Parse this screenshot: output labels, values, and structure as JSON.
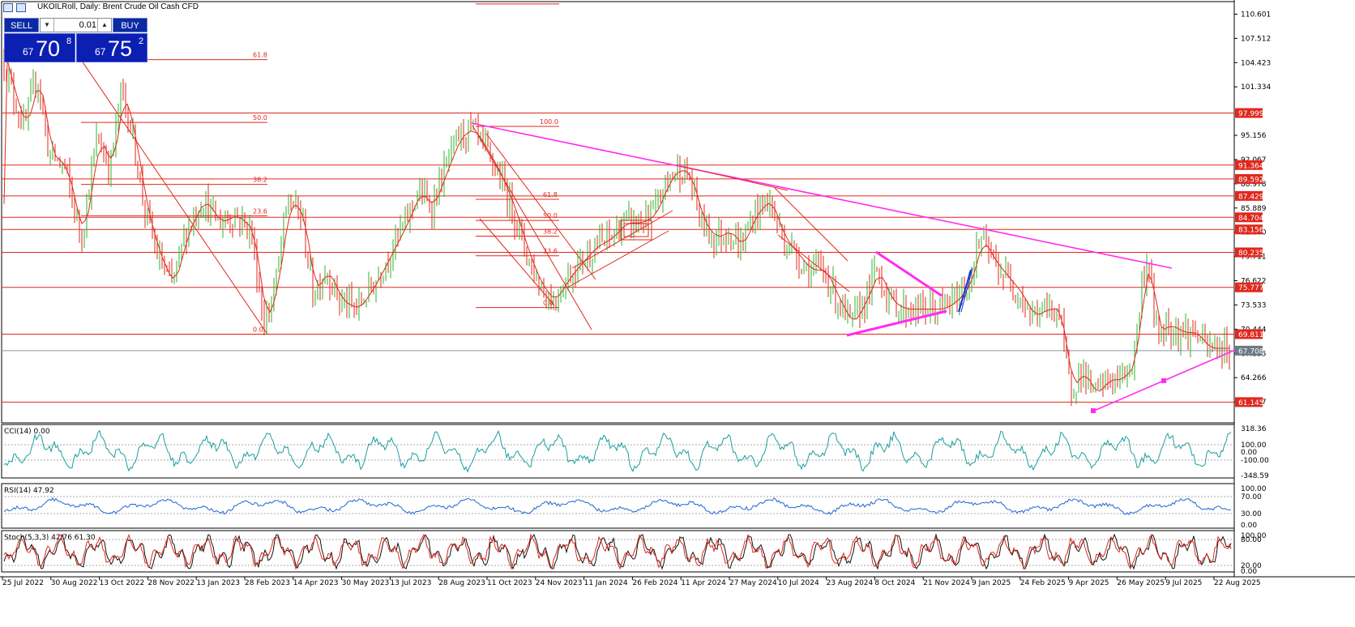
{
  "window": {
    "title": "UKOILRoll, Daily:  Brent Crude Oil Cash CFD"
  },
  "trade_panel": {
    "sell_label": "SELL",
    "buy_label": "BUY",
    "lot": "0.01",
    "sell_price": {
      "prefix": "67",
      "big": "70",
      "sup": "8"
    },
    "buy_price": {
      "prefix": "67",
      "big": "75",
      "sup": "2"
    }
  },
  "colors": {
    "up_candle": "#2bb52b",
    "down_candle": "#e0281e",
    "ma": "#e0281e",
    "level_line": "#e0281e",
    "trend_magenta": "#ff2cf2",
    "cci": "#1b9e9e",
    "rsi": "#1e66d0",
    "stoch_main": "#111111",
    "stoch_signal": "#e0281e",
    "price_tag_bg": "#e0281e",
    "current_tag_bg": "#6c7a86"
  },
  "chart_data": {
    "type": "candlestick",
    "symbol": "UKOILRoll",
    "timeframe": "Daily",
    "ylim": [
      58.5,
      112.2
    ],
    "y_ticks": [
      "110.601",
      "107.512",
      "104.423",
      "101.334",
      "95.156",
      "92.067",
      "88.978",
      "85.889",
      "82.800",
      "79.711",
      "76.622",
      "73.533",
      "70.444",
      "67.355",
      "64.266",
      "61.177"
    ],
    "x_ticks": [
      "25 Jul 2022",
      "30 Aug 2022",
      "13 Oct 2022",
      "28 Nov 2022",
      "13 Jan 2023",
      "28 Feb 2023",
      "14 Apr 2023",
      "30 May 2023",
      "13 Jul 2023",
      "28 Aug 2023",
      "11 Oct 2023",
      "24 Nov 2023",
      "11 Jan 2024",
      "26 Feb 2024",
      "11 Apr 2024",
      "27 May 2024",
      "10 Jul 2024",
      "23 Aug 2024",
      "8 Oct 2024",
      "21 Nov 2024",
      "9 Jan 2025",
      "24 Feb 2025",
      "9 Apr 2025",
      "26 May 2025",
      "9 Jul 2025",
      "22 Aug 2025"
    ],
    "horizontal_levels": [
      "97.999",
      "91.364",
      "89.592",
      "87.429",
      "84.704",
      "83.156",
      "80.235",
      "75.777",
      "69.811",
      "61.145"
    ],
    "current_price": "67.708",
    "price_path": [
      [
        0,
        107
      ],
      [
        14,
        101
      ],
      [
        30,
        96
      ],
      [
        46,
        103
      ],
      [
        60,
        93
      ],
      [
        80,
        91
      ],
      [
        100,
        82
      ],
      [
        120,
        95
      ],
      [
        136,
        91
      ],
      [
        150,
        101
      ],
      [
        164,
        95
      ],
      [
        178,
        86
      ],
      [
        194,
        80
      ],
      [
        212,
        76
      ],
      [
        230,
        83
      ],
      [
        250,
        87
      ],
      [
        270,
        84
      ],
      [
        290,
        85
      ],
      [
        310,
        83
      ],
      [
        326,
        71
      ],
      [
        340,
        76
      ],
      [
        355,
        87
      ],
      [
        372,
        85
      ],
      [
        386,
        75
      ],
      [
        402,
        78
      ],
      [
        420,
        74
      ],
      [
        440,
        73
      ],
      [
        460,
        76
      ],
      [
        480,
        80
      ],
      [
        500,
        84
      ],
      [
        516,
        88
      ],
      [
        532,
        86
      ],
      [
        550,
        91
      ],
      [
        566,
        95
      ],
      [
        582,
        96
      ],
      [
        600,
        93
      ],
      [
        616,
        90
      ],
      [
        632,
        86
      ],
      [
        650,
        80
      ],
      [
        666,
        76
      ],
      [
        682,
        74
      ],
      [
        700,
        77
      ],
      [
        716,
        79
      ],
      [
        734,
        81
      ],
      [
        752,
        82
      ],
      [
        770,
        84
      ],
      [
        790,
        84
      ],
      [
        806,
        85
      ],
      [
        822,
        89
      ],
      [
        836,
        91
      ],
      [
        850,
        90
      ],
      [
        866,
        84
      ],
      [
        882,
        82
      ],
      [
        898,
        83
      ],
      [
        914,
        81
      ],
      [
        930,
        85
      ],
      [
        948,
        87
      ],
      [
        966,
        82
      ],
      [
        982,
        80
      ],
      [
        998,
        78
      ],
      [
        1016,
        78
      ],
      [
        1034,
        74
      ],
      [
        1050,
        71
      ],
      [
        1066,
        74
      ],
      [
        1082,
        78
      ],
      [
        1098,
        74
      ],
      [
        1114,
        73
      ],
      [
        1130,
        73
      ],
      [
        1146,
        73
      ],
      [
        1162,
        73
      ],
      [
        1178,
        74
      ],
      [
        1194,
        76
      ],
      [
        1210,
        82
      ],
      [
        1226,
        79
      ],
      [
        1242,
        77
      ],
      [
        1258,
        75
      ],
      [
        1274,
        72
      ],
      [
        1290,
        73
      ],
      [
        1306,
        73
      ],
      [
        1320,
        63
      ],
      [
        1336,
        65
      ],
      [
        1350,
        62
      ],
      [
        1366,
        64
      ],
      [
        1382,
        64
      ],
      [
        1398,
        66
      ],
      [
        1410,
        77
      ],
      [
        1418,
        79
      ],
      [
        1426,
        70
      ],
      [
        1442,
        71
      ],
      [
        1458,
        70
      ],
      [
        1474,
        70
      ],
      [
        1490,
        68
      ],
      [
        1506,
        68
      ],
      [
        1520,
        68
      ]
    ],
    "fibonacci_levels": [
      {
        "label": "61.8"
      },
      {
        "label": "50.0"
      },
      {
        "label": "38.2"
      },
      {
        "label": "23.6"
      },
      {
        "label": "0.0"
      }
    ],
    "fibonacci_levels_2": [
      {
        "label": "100.0"
      },
      {
        "label": "61.8"
      },
      {
        "label": "50.0"
      },
      {
        "label": "38.2"
      },
      {
        "label": "23.6"
      },
      {
        "label": "0.0"
      }
    ],
    "indicators": [
      {
        "name": "CCI(14) 0.00",
        "ticks": [
          "318.36",
          "100.00",
          "0.00",
          "-100.00",
          "-348.59"
        ]
      },
      {
        "name": "RSI(14) 47.92",
        "ticks": [
          "100.00",
          "70.00",
          "30.00",
          "0.00"
        ]
      },
      {
        "name": "Stoch(5,3,3) 42.76 61.30",
        "ticks": [
          "100.00",
          "80.00",
          "20.00",
          "0.00"
        ]
      }
    ]
  }
}
